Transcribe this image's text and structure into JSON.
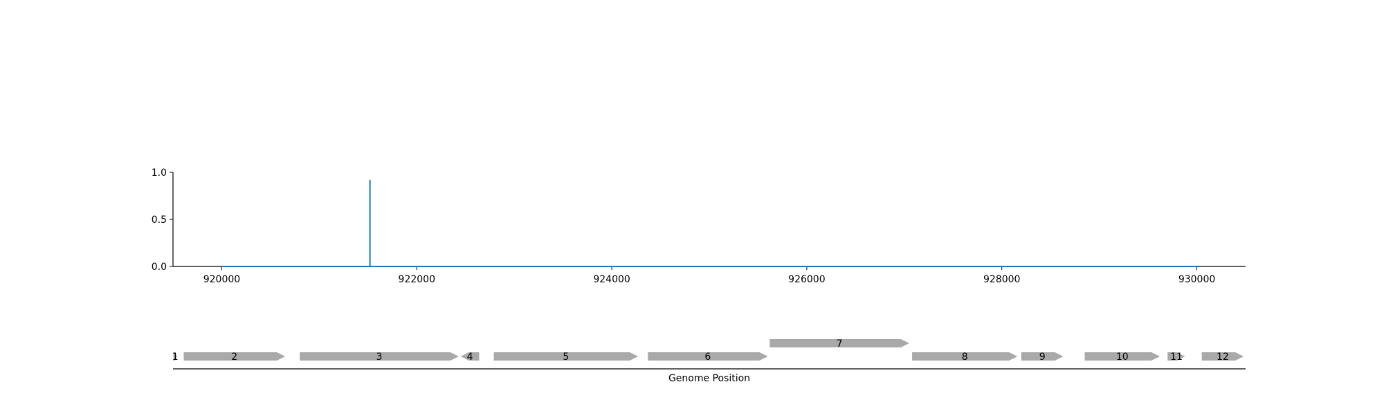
{
  "chart_data": [
    {
      "type": "line",
      "title": "",
      "xlabel": "",
      "ylabel": "",
      "xlim": [
        919500,
        930500
      ],
      "ylim": [
        0,
        1
      ],
      "x_ticks": [
        920000,
        922000,
        924000,
        926000,
        928000,
        930000
      ],
      "x_tick_labels": [
        "920000",
        "922000",
        "924000",
        "926000",
        "928000",
        "930000"
      ],
      "y_ticks": [
        0,
        0.5,
        1
      ],
      "y_tick_labels": [
        "0.0",
        "0.5",
        "1.0"
      ],
      "grid": false,
      "series": [
        {
          "color": "#1f77b4",
          "x": [
            920000,
            921520,
            921520,
            921520,
            930000
          ],
          "y": [
            0,
            0,
            0.92,
            0,
            0
          ]
        }
      ]
    },
    {
      "type": "gene-map",
      "xlabel": "Genome Position",
      "xlim": [
        919500,
        930500
      ],
      "color": "#a9a9a9",
      "genes": [
        {
          "label": "1",
          "start": 919505,
          "end": 919540,
          "strand": "+",
          "row": 0
        },
        {
          "label": "2",
          "start": 919610,
          "end": 920650,
          "strand": "+",
          "row": 0
        },
        {
          "label": "3",
          "start": 920800,
          "end": 922430,
          "strand": "+",
          "row": 0
        },
        {
          "label": "4",
          "start": 922450,
          "end": 922640,
          "strand": "-",
          "row": 0
        },
        {
          "label": "5",
          "start": 922790,
          "end": 924270,
          "strand": "+",
          "row": 0
        },
        {
          "label": "6",
          "start": 924370,
          "end": 925600,
          "strand": "+",
          "row": 0
        },
        {
          "label": "7",
          "start": 925620,
          "end": 927050,
          "strand": "+",
          "row": 1
        },
        {
          "label": "8",
          "start": 927080,
          "end": 928160,
          "strand": "+",
          "row": 0
        },
        {
          "label": "9",
          "start": 928200,
          "end": 928630,
          "strand": "+",
          "row": 0
        },
        {
          "label": "10",
          "start": 928850,
          "end": 929620,
          "strand": "+",
          "row": 0
        },
        {
          "label": "11",
          "start": 929700,
          "end": 929880,
          "strand": "+",
          "row": 0
        },
        {
          "label": "12",
          "start": 930050,
          "end": 930480,
          "strand": "+",
          "row": 0
        }
      ]
    }
  ]
}
